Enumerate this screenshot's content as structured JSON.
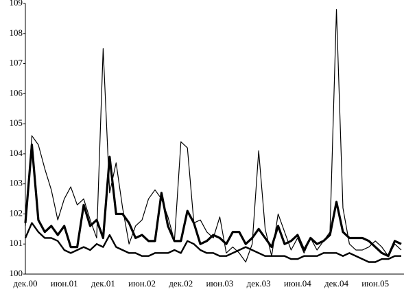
{
  "chart_data": {
    "type": "line",
    "categories": [
      "дек.00",
      null,
      null,
      null,
      null,
      null,
      "июн.01",
      null,
      null,
      null,
      null,
      null,
      "дек.01",
      null,
      null,
      null,
      null,
      null,
      "июн.02",
      null,
      null,
      null,
      null,
      null,
      "дек.02",
      null,
      null,
      null,
      null,
      null,
      "июн.03",
      null,
      null,
      null,
      null,
      null,
      "дек.03",
      null,
      null,
      null,
      null,
      null,
      "июн.04",
      null,
      null,
      null,
      null,
      null,
      "дек.04",
      null,
      null,
      null,
      null,
      null,
      "июн.05",
      null,
      null,
      null,
      null
    ],
    "series": [
      {
        "color": "#000000",
        "width": 1.2,
        "values": [
          101.6,
          104.6,
          104.3,
          103.5,
          102.8,
          101.8,
          102.5,
          102.9,
          102.3,
          102.5,
          101.8,
          101.2,
          107.5,
          102.7,
          103.7,
          102.2,
          101.0,
          101.6,
          101.8,
          102.5,
          102.8,
          102.5,
          101.9,
          101.1,
          104.4,
          104.2,
          101.7,
          101.8,
          101.4,
          101.2,
          101.9,
          100.7,
          100.9,
          100.7,
          100.4,
          101.0,
          104.1,
          101.5,
          100.6,
          102.0,
          101.4,
          100.8,
          101.2,
          100.7,
          101.2,
          100.8,
          101.1,
          101.4,
          108.8,
          102.2,
          101.0,
          100.8,
          100.8,
          100.9,
          101.1,
          100.9,
          100.6,
          101.0,
          100.8
        ]
      },
      {
        "color": "#000000",
        "width": 3.2,
        "values": [
          101.7,
          104.3,
          101.8,
          101.4,
          101.6,
          101.3,
          101.6,
          100.9,
          100.9,
          102.3,
          101.6,
          101.8,
          101.2,
          103.9,
          102.0,
          102.0,
          101.7,
          101.2,
          101.3,
          101.1,
          101.1,
          102.7,
          101.6,
          101.1,
          101.1,
          102.1,
          101.7,
          101.0,
          101.1,
          101.3,
          101.2,
          101.0,
          101.4,
          101.4,
          101.0,
          101.2,
          101.5,
          101.2,
          100.9,
          101.6,
          101.0,
          101.1,
          101.3,
          100.8,
          101.2,
          101.0,
          101.1,
          101.3,
          102.4,
          101.4,
          101.2,
          101.2,
          101.2,
          101.1,
          100.9,
          100.7,
          100.6,
          101.1,
          101.0
        ]
      },
      {
        "color": "#000000",
        "width": 2.4,
        "values": [
          101.2,
          101.7,
          101.4,
          101.2,
          101.2,
          101.1,
          100.8,
          100.7,
          100.8,
          100.9,
          100.8,
          101.0,
          100.9,
          101.3,
          100.9,
          100.8,
          100.7,
          100.7,
          100.6,
          100.6,
          100.7,
          100.7,
          100.7,
          100.8,
          100.7,
          101.1,
          101.0,
          100.8,
          100.7,
          100.7,
          100.6,
          100.6,
          100.7,
          100.8,
          100.9,
          100.8,
          100.7,
          100.6,
          100.6,
          100.6,
          100.6,
          100.5,
          100.5,
          100.6,
          100.6,
          100.6,
          100.7,
          100.7,
          100.7,
          100.6,
          100.7,
          100.6,
          100.5,
          100.4,
          100.4,
          100.5,
          100.5,
          100.6,
          100.6
        ]
      }
    ],
    "ylim": [
      100,
      109
    ],
    "yticks": [
      100,
      101,
      102,
      103,
      104,
      105,
      106,
      107,
      108,
      109
    ],
    "grid": false
  }
}
